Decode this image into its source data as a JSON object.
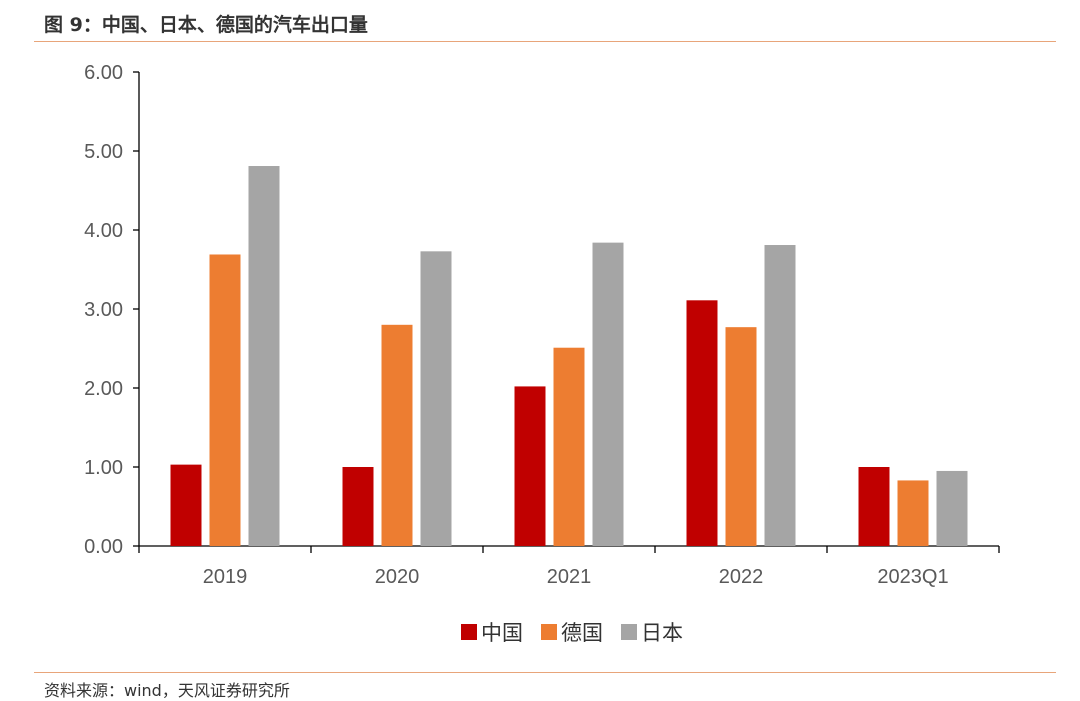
{
  "figure": {
    "title": "图 9：中国、日本、德国的汽车出口量",
    "source": "资料来源：wind，天风证券研究所"
  },
  "chart_data": {
    "type": "bar",
    "title": "",
    "xlabel": "",
    "ylabel": "",
    "categories": [
      "2019",
      "2020",
      "2021",
      "2022",
      "2023Q1"
    ],
    "ylim": [
      0,
      6
    ],
    "yticks": [
      "0.00",
      "1.00",
      "2.00",
      "3.00",
      "4.00",
      "5.00",
      "6.00"
    ],
    "grid": false,
    "legend_position": "bottom",
    "series": [
      {
        "name": "中国",
        "color": "#C00000",
        "values": [
          1.03,
          1.0,
          2.02,
          3.11,
          1.0
        ]
      },
      {
        "name": "德国",
        "color": "#ED7D31",
        "values": [
          3.69,
          2.8,
          2.51,
          2.77,
          0.83
        ]
      },
      {
        "name": "日本",
        "color": "#A5A5A5",
        "values": [
          4.81,
          3.73,
          3.84,
          3.81,
          0.95
        ]
      }
    ]
  }
}
